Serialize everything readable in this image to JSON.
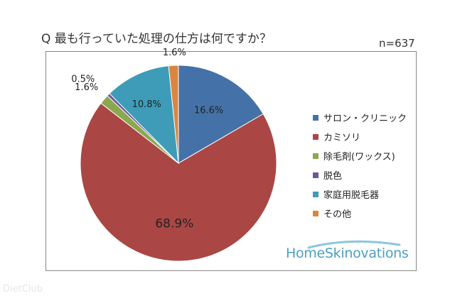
{
  "chart_data": {
    "type": "pie",
    "title": "Q 最も行っていた処理の仕方は何ですか？",
    "sample_size_label": "n=637",
    "categories": [
      "サロン・クリニック",
      "カミソリ",
      "除毛剤(ワックス)",
      "脱色",
      "家庭用脱毛器",
      "その他"
    ],
    "values": [
      16.6,
      68.9,
      1.6,
      0.5,
      10.8,
      1.6
    ],
    "data_labels": [
      "16.6%",
      "68.9%",
      "1.6%",
      "0.5%",
      "10.8%",
      "1.6%"
    ],
    "colors": [
      "#4472a8",
      "#aa4644",
      "#8aa84e",
      "#6e559a",
      "#3e9cb8",
      "#db8640"
    ],
    "legend_position": "right",
    "start_angle": "12 o'clock, clockwise"
  },
  "brand": {
    "logo_text": "HomeSkinovations"
  },
  "watermark": {
    "text": "DietClub"
  }
}
